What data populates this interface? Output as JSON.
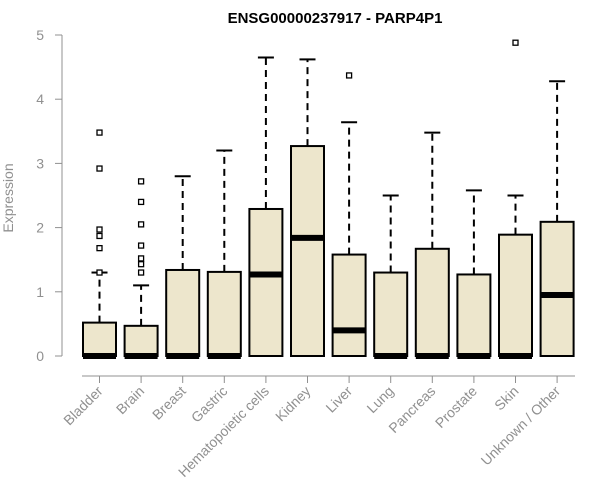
{
  "chart_data": {
    "type": "boxplot",
    "title": "ENSG00000237917 - PARP4P1",
    "xlabel": "",
    "ylabel": "Expression",
    "ylim": [
      0,
      5
    ],
    "yticks": [
      0,
      1,
      2,
      3,
      4,
      5
    ],
    "grid": false,
    "legend": "none",
    "colors": {
      "box_fill": "#ede6cc",
      "box_stroke": "#000000",
      "axis": "#909090",
      "title": "#000000"
    },
    "categories": [
      "Bladder",
      "Brain",
      "Breast",
      "Gastric",
      "Hematopoietic cells",
      "Kidney",
      "Liver",
      "Lung",
      "Pancreas",
      "Prostate",
      "Skin",
      "Unknown / Other"
    ],
    "boxes": [
      {
        "category": "Bladder",
        "whisker_low": 0,
        "q1": 0,
        "median": 0,
        "q3": 0.52,
        "whisker_high": 1.3,
        "outliers": [
          1.3,
          1.68,
          1.87,
          1.97,
          2.92,
          3.48
        ]
      },
      {
        "category": "Brain",
        "whisker_low": 0,
        "q1": 0,
        "median": 0,
        "q3": 0.47,
        "whisker_high": 1.1,
        "outliers": [
          1.3,
          1.43,
          1.52,
          1.72,
          2.05,
          2.4,
          2.72
        ]
      },
      {
        "category": "Breast",
        "whisker_low": 0,
        "q1": 0,
        "median": 0,
        "q3": 1.34,
        "whisker_high": 2.8,
        "outliers": []
      },
      {
        "category": "Gastric",
        "whisker_low": 0,
        "q1": 0,
        "median": 0,
        "q3": 1.31,
        "whisker_high": 3.2,
        "outliers": []
      },
      {
        "category": "Hematopoietic cells",
        "whisker_low": 0,
        "q1": 0,
        "median": 1.27,
        "q3": 2.29,
        "whisker_high": 4.65,
        "outliers": []
      },
      {
        "category": "Kidney",
        "whisker_low": 0,
        "q1": 0,
        "median": 1.84,
        "q3": 3.27,
        "whisker_high": 4.62,
        "outliers": []
      },
      {
        "category": "Liver",
        "whisker_low": 0,
        "q1": 0,
        "median": 0.4,
        "q3": 1.58,
        "whisker_high": 3.64,
        "outliers": [
          4.37
        ]
      },
      {
        "category": "Lung",
        "whisker_low": 0,
        "q1": 0,
        "median": 0,
        "q3": 1.3,
        "whisker_high": 2.5,
        "outliers": []
      },
      {
        "category": "Pancreas",
        "whisker_low": 0,
        "q1": 0,
        "median": 0,
        "q3": 1.67,
        "whisker_high": 3.48,
        "outliers": []
      },
      {
        "category": "Prostate",
        "whisker_low": 0,
        "q1": 0,
        "median": 0,
        "q3": 1.27,
        "whisker_high": 2.58,
        "outliers": []
      },
      {
        "category": "Skin",
        "whisker_low": 0,
        "q1": 0,
        "median": 0,
        "q3": 1.89,
        "whisker_high": 2.5,
        "outliers": [
          4.88
        ]
      },
      {
        "category": "Unknown / Other",
        "whisker_low": 0,
        "q1": 0,
        "median": 0.95,
        "q3": 2.09,
        "whisker_high": 4.28,
        "outliers": []
      }
    ]
  }
}
